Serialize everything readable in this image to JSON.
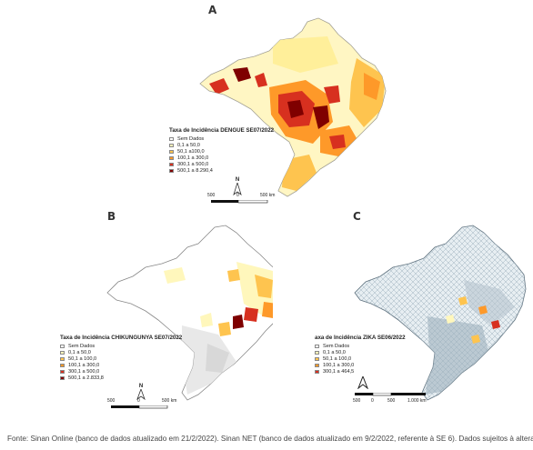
{
  "panels": [
    {
      "letter": "A",
      "legend_title": "Taxa de Incidência DENGUE SE07/2022",
      "legend_items": [
        {
          "label": "Sem Dados",
          "color": "#ffffff"
        },
        {
          "label": "0,1 a 50,0",
          "color": "#fff7bc"
        },
        {
          "label": "50,1 a100,0",
          "color": "#fec44f"
        },
        {
          "label": "100,1 a 300,0",
          "color": "#fe9929"
        },
        {
          "label": "300,1 a 500,0",
          "color": "#d7301f"
        },
        {
          "label": "500,1 a 8.290,4",
          "color": "#7f0000"
        }
      ],
      "scale_labels": [
        "500",
        "0",
        "500 km"
      ],
      "north_label": "N"
    },
    {
      "letter": "B",
      "legend_title": "Taxa de Incidência CHIKUNGUNYA SE07/2022",
      "legend_items": [
        {
          "label": "Sem Dados",
          "color": "#ffffff"
        },
        {
          "label": "0,1 a 50,0",
          "color": "#fff7bc"
        },
        {
          "label": "50,1 a 100,0",
          "color": "#fec44f"
        },
        {
          "label": "100,1 a 300,0",
          "color": "#fe9929"
        },
        {
          "label": "300,1 a 500,0",
          "color": "#d7301f"
        },
        {
          "label": "500,1 a 2.833,8",
          "color": "#7f0000"
        }
      ],
      "scale_labels": [
        "500",
        "0",
        "500 km"
      ],
      "north_label": "N"
    },
    {
      "letter": "C",
      "legend_title": "axa de Incidência ZIKA SE06/2022",
      "legend_items": [
        {
          "label": "Sem Dados",
          "color": "#ffffff"
        },
        {
          "label": "0,1 a 50,0",
          "color": "#fff7bc"
        },
        {
          "label": "50,1 a 100,0",
          "color": "#fec44f"
        },
        {
          "label": "100,1 a 300,0",
          "color": "#fe9929"
        },
        {
          "label": "300,1 a 464,5",
          "color": "#d7301f"
        }
      ],
      "scale_labels": [
        "500",
        "0",
        "500",
        "1.000 km"
      ],
      "north_label": ""
    }
  ],
  "source_note": "Fonte: Sinan Online (banco de dados atualizado em 21/2/2022). Sinan NET (banco de dados atualizado em 9/2/2022, referente à SE 6). Dados sujeitos à alteração."
}
